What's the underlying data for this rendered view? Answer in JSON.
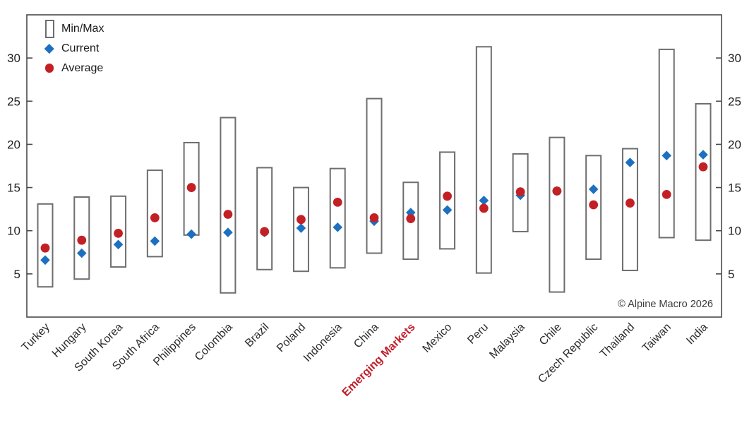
{
  "chart_data": {
    "type": "range-bar",
    "title": "",
    "xlabel": "",
    "ylabel": "",
    "ylim": [
      0,
      35
    ],
    "yticks": [
      5,
      10,
      15,
      20,
      25,
      30
    ],
    "grid": false,
    "legend_position": "top-left-inside",
    "legend": [
      {
        "label": "Min/Max",
        "marker": "range-bar"
      },
      {
        "label": "Current",
        "marker": "diamond"
      },
      {
        "label": "Average",
        "marker": "circle"
      }
    ],
    "categories": [
      "Turkey",
      "Hungary",
      "South Korea",
      "South Africa",
      "Philippines",
      "Colombia",
      "Brazil",
      "Poland",
      "Indonesia",
      "China",
      "Emerging Markets",
      "Mexico",
      "Peru",
      "Malaysia",
      "Chile",
      "Czech Republic",
      "Thailand",
      "Taiwan",
      "India"
    ],
    "highlight_category": "Emerging Markets",
    "series": [
      {
        "name": "Min",
        "values": [
          3.5,
          4.4,
          5.8,
          7.0,
          9.5,
          2.8,
          5.5,
          5.3,
          5.7,
          7.4,
          6.7,
          7.9,
          5.1,
          9.9,
          2.9,
          6.7,
          5.4,
          9.2,
          8.9
        ]
      },
      {
        "name": "Max",
        "values": [
          13.1,
          13.9,
          14.0,
          17.0,
          20.2,
          23.1,
          17.3,
          15.0,
          17.2,
          25.3,
          15.6,
          19.1,
          31.3,
          18.9,
          20.8,
          18.7,
          19.5,
          31.0,
          24.7
        ]
      },
      {
        "name": "Current",
        "values": [
          6.6,
          7.4,
          8.4,
          8.8,
          9.6,
          9.8,
          9.8,
          10.3,
          10.4,
          11.1,
          12.1,
          12.4,
          13.5,
          14.1,
          14.6,
          14.8,
          17.9,
          18.7,
          18.8
        ]
      },
      {
        "name": "Average",
        "values": [
          8.0,
          8.9,
          9.7,
          11.5,
          15.0,
          11.9,
          9.9,
          11.3,
          13.3,
          11.5,
          11.4,
          14.0,
          12.6,
          14.5,
          14.6,
          13.0,
          13.2,
          14.2,
          17.4
        ]
      }
    ],
    "footnote": "© Alpine Macro 2026"
  },
  "colors": {
    "current": "#1d70c0",
    "average": "#c32026",
    "highlight_label": "#c2202c",
    "bar_outline": "#6e6e6e",
    "frame": "#4a4a4a",
    "tick_text": "#222222",
    "label_text": "#2b2b2b"
  }
}
